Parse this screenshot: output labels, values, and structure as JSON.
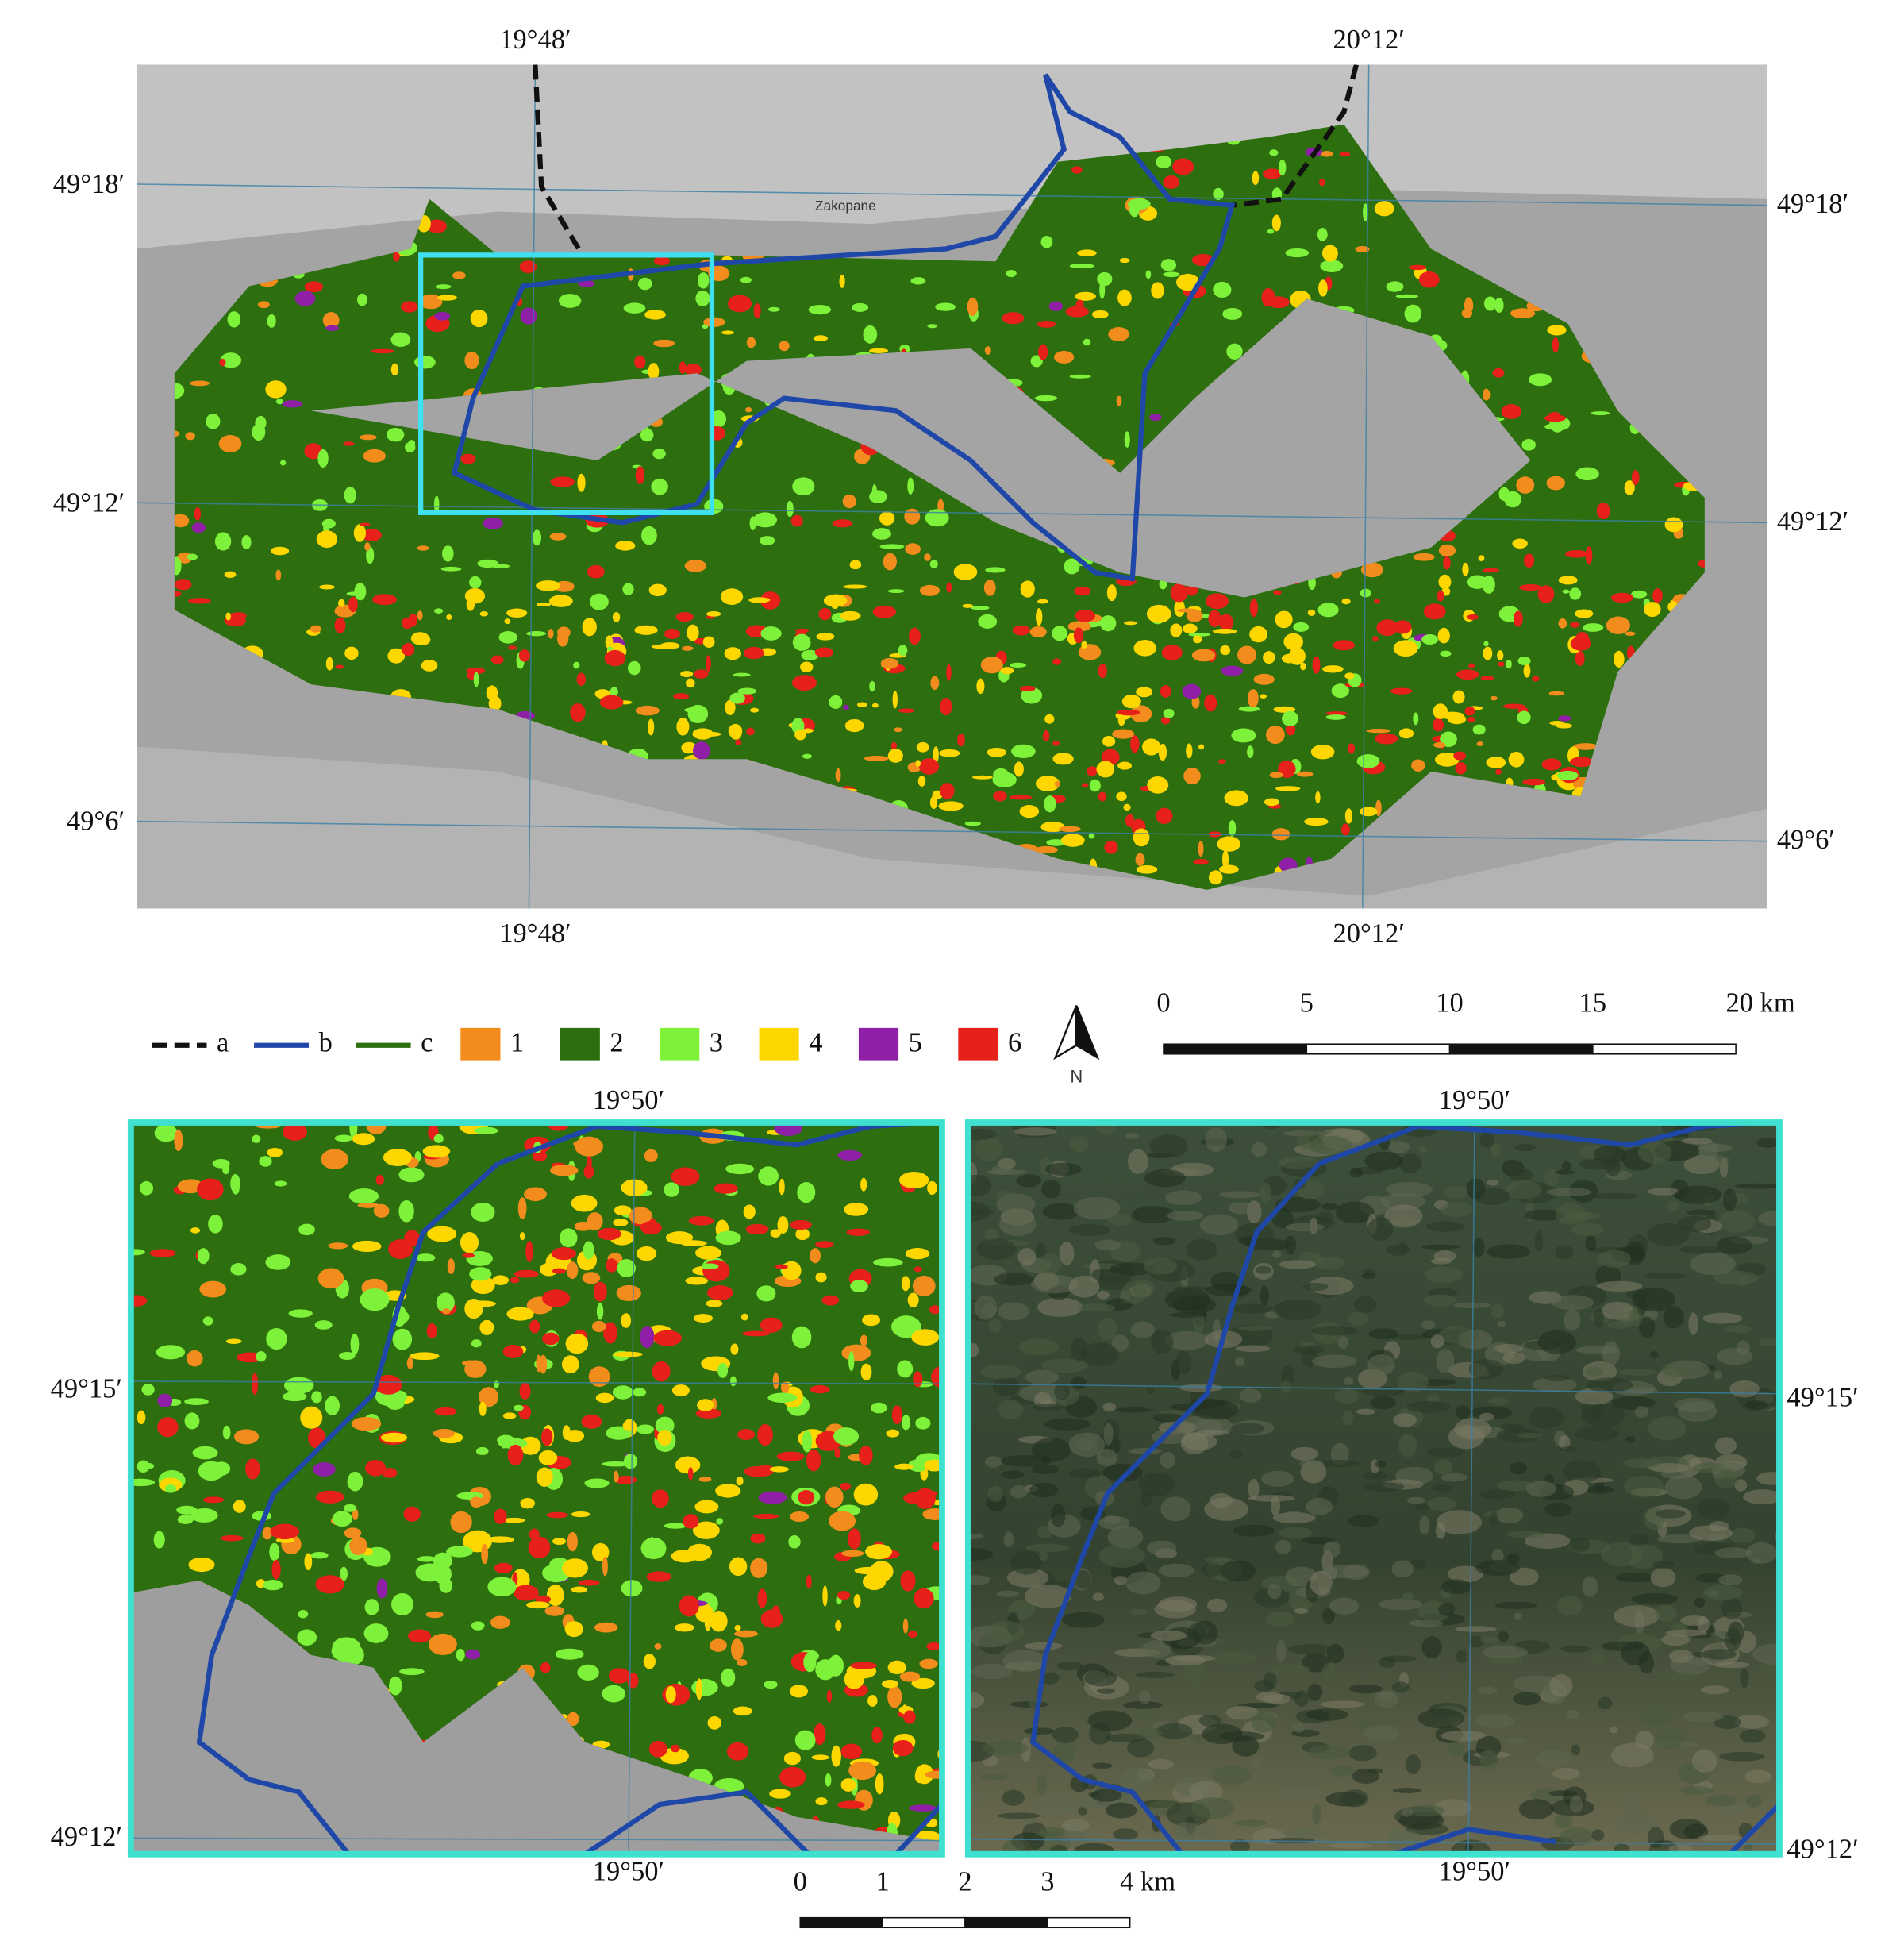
{
  "top_map": {
    "lon_labels_top": [
      "19°48′",
      "20°12′"
    ],
    "lon_labels_bottom": [
      "19°48′",
      "20°12′"
    ],
    "lat_labels_left": [
      "49°18′",
      "49°12′",
      "49°6′"
    ],
    "lat_labels_right": [
      "49°18′",
      "49°12′",
      "49°6′"
    ],
    "place_label": "Zakopane"
  },
  "legend": {
    "lines": [
      {
        "label": "a",
        "color": "#111111"
      },
      {
        "label": "b",
        "color": "#1f47a8"
      },
      {
        "label": "c",
        "color": "#2d6e0f"
      }
    ],
    "classes": [
      {
        "label": "1",
        "color": "#f28c1c"
      },
      {
        "label": "2",
        "color": "#2d6e0f"
      },
      {
        "label": "3",
        "color": "#7ef23a"
      },
      {
        "label": "4",
        "color": "#ffd700"
      },
      {
        "label": "5",
        "color": "#8e1fa6"
      },
      {
        "label": "6",
        "color": "#e8201a"
      }
    ],
    "north": "N"
  },
  "scale_top": [
    "0",
    "5",
    "10",
    "15",
    "20 km"
  ],
  "detail_left": {
    "lon_label_top": "19°50′",
    "lon_label_bottom": "19°50′",
    "lat_labels": [
      "49°15′",
      "49°12′"
    ]
  },
  "detail_right": {
    "lon_label_top": "19°50′",
    "lon_label_bottom": "19°50′",
    "lat_labels": [
      "49°15′",
      "49°12′"
    ]
  },
  "scale_bottom": [
    "0",
    "1",
    "2",
    "3",
    "4 km"
  ]
}
